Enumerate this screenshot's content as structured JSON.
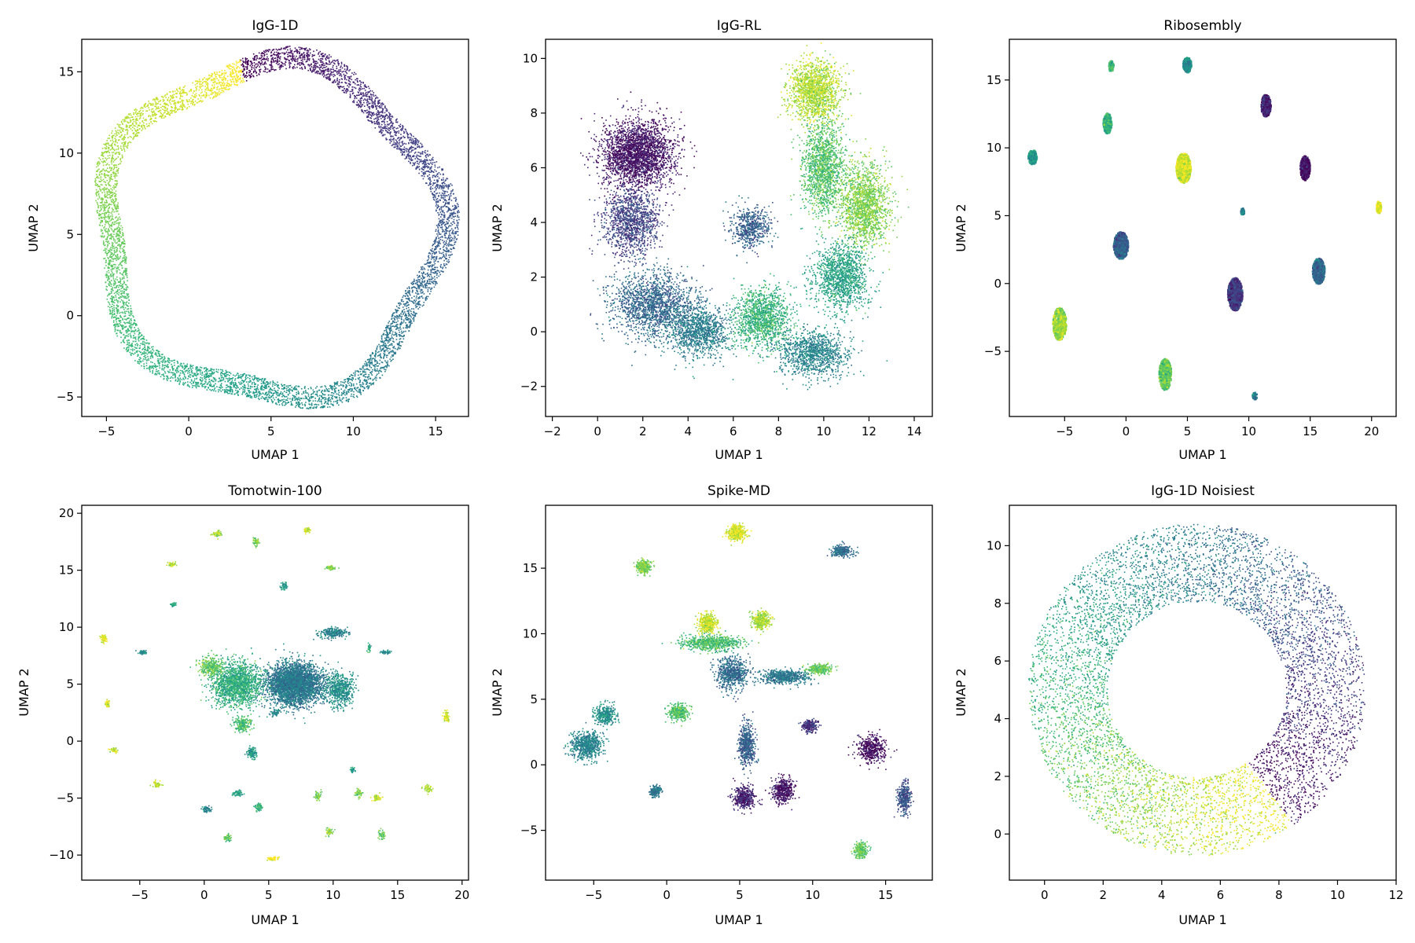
{
  "chart_data": [
    {
      "type": "scatter",
      "title": "IgG-1D",
      "xlabel": "UMAP 1",
      "ylabel": "UMAP 2",
      "xlim": [
        -6.5,
        17
      ],
      "ylim": [
        -6.2,
        17
      ],
      "xticks": [
        -5,
        0,
        5,
        10,
        15
      ],
      "yticks": [
        -5,
        0,
        5,
        10,
        15
      ],
      "xtick_labels": [
        "−5",
        "0",
        "5",
        "10",
        "15"
      ],
      "ytick_labels": [
        "−5",
        "0",
        "5",
        "10",
        "15"
      ],
      "grid": false,
      "colormap": "viridis",
      "structure": "ring",
      "center": [
        5.0,
        5.2
      ],
      "radius": 10.2,
      "thickness": 0.7,
      "color_start_angle_deg": 100
    },
    {
      "type": "scatter",
      "title": "IgG-RL",
      "xlabel": "UMAP 1",
      "ylabel": "UMAP 2",
      "xlim": [
        -2.3,
        14.8
      ],
      "ylim": [
        -3.1,
        10.7
      ],
      "xticks": [
        -2,
        0,
        2,
        4,
        6,
        8,
        10,
        12,
        14
      ],
      "yticks": [
        -2,
        0,
        2,
        4,
        6,
        8,
        10
      ],
      "xtick_labels": [
        "−2",
        "0",
        "2",
        "4",
        "6",
        "8",
        "10",
        "12",
        "14"
      ],
      "ytick_labels": [
        "−2",
        "0",
        "2",
        "4",
        "6",
        "8",
        "10"
      ],
      "grid": false,
      "colormap": "viridis",
      "structure": "blobs",
      "clusters": [
        {
          "x": 1.8,
          "y": 6.5,
          "sx": 1.3,
          "sy": 1.0,
          "c": 0.05,
          "n": 2600
        },
        {
          "x": 1.5,
          "y": 4.0,
          "sx": 1.0,
          "sy": 1.0,
          "c": 0.2,
          "n": 1200
        },
        {
          "x": 2.5,
          "y": 1.0,
          "sx": 1.5,
          "sy": 1.0,
          "c": 0.33,
          "n": 1700
        },
        {
          "x": 4.5,
          "y": 0.0,
          "sx": 1.2,
          "sy": 0.8,
          "c": 0.42,
          "n": 1100
        },
        {
          "x": 6.8,
          "y": 3.8,
          "sx": 0.7,
          "sy": 0.6,
          "c": 0.3,
          "n": 600
        },
        {
          "x": 7.3,
          "y": 0.5,
          "sx": 1.0,
          "sy": 0.9,
          "c": 0.65,
          "n": 1300
        },
        {
          "x": 9.5,
          "y": -0.8,
          "sx": 1.3,
          "sy": 0.7,
          "c": 0.45,
          "n": 1100
        },
        {
          "x": 9.6,
          "y": 8.8,
          "sx": 0.9,
          "sy": 0.9,
          "c": 0.88,
          "n": 1500
        },
        {
          "x": 10.0,
          "y": 6.0,
          "sx": 0.8,
          "sy": 1.4,
          "c": 0.72,
          "n": 1500
        },
        {
          "x": 11.8,
          "y": 4.6,
          "sx": 0.9,
          "sy": 1.2,
          "c": 0.8,
          "n": 1600
        },
        {
          "x": 10.8,
          "y": 2.0,
          "sx": 1.0,
          "sy": 1.0,
          "c": 0.58,
          "n": 1300
        }
      ]
    },
    {
      "type": "scatter",
      "title": "Ribosembly",
      "xlabel": "UMAP 1",
      "ylabel": "UMAP 2",
      "xlim": [
        -9.5,
        22
      ],
      "ylim": [
        -9.8,
        18
      ],
      "xticks": [
        -5,
        0,
        5,
        10,
        15,
        20
      ],
      "yticks": [
        -5,
        0,
        5,
        10,
        15
      ],
      "xtick_labels": [
        "−5",
        "0",
        "5",
        "10",
        "15",
        "20"
      ],
      "ytick_labels": [
        "−5",
        "0",
        "5",
        "10",
        "15"
      ],
      "grid": false,
      "colormap": "viridis",
      "structure": "solid-blobs",
      "clusters": [
        {
          "x": -1.2,
          "y": 16.0,
          "sx": 0.2,
          "sy": 0.4,
          "c": 0.68,
          "n": 120
        },
        {
          "x": 5.0,
          "y": 16.1,
          "sx": 0.35,
          "sy": 0.55,
          "c": 0.5,
          "n": 250
        },
        {
          "x": 11.4,
          "y": 13.1,
          "sx": 0.4,
          "sy": 0.8,
          "c": 0.1,
          "n": 400
        },
        {
          "x": -1.5,
          "y": 11.8,
          "sx": 0.35,
          "sy": 0.75,
          "c": 0.65,
          "n": 300
        },
        {
          "x": -7.6,
          "y": 9.3,
          "sx": 0.35,
          "sy": 0.55,
          "c": 0.55,
          "n": 250
        },
        {
          "x": 4.7,
          "y": 8.5,
          "sx": 0.6,
          "sy": 1.1,
          "c": 0.92,
          "n": 700
        },
        {
          "x": 14.6,
          "y": 8.5,
          "sx": 0.4,
          "sy": 0.9,
          "c": 0.05,
          "n": 400
        },
        {
          "x": 9.5,
          "y": 5.3,
          "sx": 0.15,
          "sy": 0.25,
          "c": 0.45,
          "n": 60
        },
        {
          "x": 20.6,
          "y": 5.6,
          "sx": 0.2,
          "sy": 0.45,
          "c": 0.97,
          "n": 120
        },
        {
          "x": -0.4,
          "y": 2.8,
          "sx": 0.6,
          "sy": 1.0,
          "c": 0.3,
          "n": 700
        },
        {
          "x": 15.7,
          "y": 0.9,
          "sx": 0.5,
          "sy": 0.95,
          "c": 0.35,
          "n": 500
        },
        {
          "x": 8.9,
          "y": -0.8,
          "sx": 0.6,
          "sy": 1.2,
          "c": 0.18,
          "n": 700
        },
        {
          "x": -5.4,
          "y": -3.0,
          "sx": 0.55,
          "sy": 1.2,
          "c": 0.85,
          "n": 650
        },
        {
          "x": 3.2,
          "y": -6.7,
          "sx": 0.5,
          "sy": 1.15,
          "c": 0.75,
          "n": 550
        },
        {
          "x": 10.5,
          "y": -8.3,
          "sx": 0.2,
          "sy": 0.25,
          "c": 0.4,
          "n": 60
        }
      ]
    },
    {
      "type": "scatter",
      "title": "Tomotwin-100",
      "xlabel": "UMAP 1",
      "ylabel": "UMAP 2",
      "xlim": [
        -9.5,
        20.5
      ],
      "ylim": [
        -12.2,
        20.7
      ],
      "xticks": [
        -5,
        0,
        5,
        10,
        15,
        20
      ],
      "yticks": [
        -10,
        -5,
        0,
        5,
        10,
        15,
        20
      ],
      "xtick_labels": [
        "−5",
        "0",
        "5",
        "10",
        "15",
        "20"
      ],
      "ytick_labels": [
        "−10",
        "−5",
        "0",
        "5",
        "10",
        "15",
        "20"
      ],
      "grid": false,
      "colormap": "viridis",
      "structure": "blobs",
      "clusters": [
        {
          "x": 7.0,
          "y": 5.0,
          "sx": 1.8,
          "sy": 1.5,
          "c": 0.4,
          "n": 3500
        },
        {
          "x": 2.5,
          "y": 5.0,
          "sx": 1.6,
          "sy": 1.6,
          "c": 0.62,
          "n": 1600
        },
        {
          "x": 10.5,
          "y": 4.5,
          "sx": 0.9,
          "sy": 1.2,
          "c": 0.5,
          "n": 600
        },
        {
          "x": 10.0,
          "y": 9.5,
          "sx": 0.9,
          "sy": 0.4,
          "c": 0.45,
          "n": 250
        },
        {
          "x": 3.0,
          "y": 1.5,
          "sx": 0.6,
          "sy": 0.5,
          "c": 0.7,
          "n": 200
        },
        {
          "x": 3.7,
          "y": -1.0,
          "sx": 0.3,
          "sy": 0.4,
          "c": 0.55,
          "n": 120
        },
        {
          "x": 0.5,
          "y": 6.5,
          "sx": 0.8,
          "sy": 0.7,
          "c": 0.75,
          "n": 300
        },
        {
          "x": 1.0,
          "y": 18.2,
          "sx": 0.3,
          "sy": 0.2,
          "c": 0.85,
          "n": 60
        },
        {
          "x": 4.0,
          "y": 17.5,
          "sx": 0.2,
          "sy": 0.3,
          "c": 0.8,
          "n": 60
        },
        {
          "x": 8.0,
          "y": 18.5,
          "sx": 0.2,
          "sy": 0.2,
          "c": 0.92,
          "n": 50
        },
        {
          "x": -2.5,
          "y": 15.5,
          "sx": 0.3,
          "sy": 0.15,
          "c": 0.87,
          "n": 50
        },
        {
          "x": 9.8,
          "y": 15.2,
          "sx": 0.3,
          "sy": 0.15,
          "c": 0.8,
          "n": 50
        },
        {
          "x": 6.2,
          "y": 13.6,
          "sx": 0.2,
          "sy": 0.3,
          "c": 0.55,
          "n": 50
        },
        {
          "x": -2.4,
          "y": 12.0,
          "sx": 0.2,
          "sy": 0.15,
          "c": 0.6,
          "n": 40
        },
        {
          "x": -7.8,
          "y": 9.0,
          "sx": 0.2,
          "sy": 0.3,
          "c": 0.95,
          "n": 60
        },
        {
          "x": -4.8,
          "y": 7.8,
          "sx": 0.25,
          "sy": 0.15,
          "c": 0.5,
          "n": 50
        },
        {
          "x": -7.5,
          "y": 3.3,
          "sx": 0.15,
          "sy": 0.3,
          "c": 0.95,
          "n": 50
        },
        {
          "x": -7.0,
          "y": -0.8,
          "sx": 0.3,
          "sy": 0.15,
          "c": 0.9,
          "n": 50
        },
        {
          "x": -3.7,
          "y": -3.8,
          "sx": 0.25,
          "sy": 0.25,
          "c": 0.88,
          "n": 50
        },
        {
          "x": 0.2,
          "y": -6.0,
          "sx": 0.3,
          "sy": 0.2,
          "c": 0.45,
          "n": 60
        },
        {
          "x": 2.6,
          "y": -4.6,
          "sx": 0.4,
          "sy": 0.2,
          "c": 0.58,
          "n": 60
        },
        {
          "x": 4.2,
          "y": -5.8,
          "sx": 0.25,
          "sy": 0.3,
          "c": 0.65,
          "n": 60
        },
        {
          "x": 8.8,
          "y": -4.8,
          "sx": 0.25,
          "sy": 0.3,
          "c": 0.78,
          "n": 50
        },
        {
          "x": 12.0,
          "y": -4.6,
          "sx": 0.25,
          "sy": 0.35,
          "c": 0.8,
          "n": 50
        },
        {
          "x": 13.4,
          "y": -5.0,
          "sx": 0.3,
          "sy": 0.25,
          "c": 0.92,
          "n": 50
        },
        {
          "x": 17.3,
          "y": -4.2,
          "sx": 0.3,
          "sy": 0.25,
          "c": 0.88,
          "n": 50
        },
        {
          "x": 18.8,
          "y": 2.2,
          "sx": 0.2,
          "sy": 0.4,
          "c": 0.95,
          "n": 60
        },
        {
          "x": 1.8,
          "y": -8.5,
          "sx": 0.25,
          "sy": 0.25,
          "c": 0.72,
          "n": 50
        },
        {
          "x": 9.7,
          "y": -8.0,
          "sx": 0.25,
          "sy": 0.3,
          "c": 0.82,
          "n": 50
        },
        {
          "x": 13.8,
          "y": -8.2,
          "sx": 0.2,
          "sy": 0.35,
          "c": 0.75,
          "n": 50
        },
        {
          "x": 5.3,
          "y": -10.3,
          "sx": 0.35,
          "sy": 0.15,
          "c": 0.97,
          "n": 50
        },
        {
          "x": 14.0,
          "y": 7.8,
          "sx": 0.35,
          "sy": 0.15,
          "c": 0.5,
          "n": 40
        },
        {
          "x": 12.8,
          "y": 8.2,
          "sx": 0.1,
          "sy": 0.3,
          "c": 0.6,
          "n": 30
        },
        {
          "x": 11.5,
          "y": -2.5,
          "sx": 0.15,
          "sy": 0.2,
          "c": 0.55,
          "n": 30
        },
        {
          "x": 5.5,
          "y": 2.5,
          "sx": 0.3,
          "sy": 0.3,
          "c": 0.48,
          "n": 60
        }
      ]
    },
    {
      "type": "scatter",
      "title": "Spike-MD",
      "xlabel": "UMAP 1",
      "ylabel": "UMAP 2",
      "xlim": [
        -8.3,
        18.2
      ],
      "ylim": [
        -8.8,
        19.8
      ],
      "xticks": [
        -5,
        0,
        5,
        10,
        15
      ],
      "yticks": [
        -5,
        0,
        5,
        10,
        15
      ],
      "xtick_labels": [
        "−5",
        "0",
        "5",
        "10",
        "15"
      ],
      "ytick_labels": [
        "−5",
        "0",
        "5",
        "10",
        "15"
      ],
      "grid": false,
      "colormap": "viridis",
      "structure": "blobs",
      "clusters": [
        {
          "x": 4.8,
          "y": 17.7,
          "sx": 0.5,
          "sy": 0.45,
          "c": 0.95,
          "n": 450
        },
        {
          "x": -1.6,
          "y": 15.1,
          "sx": 0.4,
          "sy": 0.4,
          "c": 0.8,
          "n": 350
        },
        {
          "x": 12.0,
          "y": 16.3,
          "sx": 0.6,
          "sy": 0.35,
          "c": 0.35,
          "n": 300
        },
        {
          "x": 2.8,
          "y": 10.8,
          "sx": 0.5,
          "sy": 0.6,
          "c": 0.92,
          "n": 450
        },
        {
          "x": 6.5,
          "y": 11.0,
          "sx": 0.5,
          "sy": 0.5,
          "c": 0.87,
          "n": 400
        },
        {
          "x": 3.0,
          "y": 9.3,
          "sx": 1.7,
          "sy": 0.5,
          "c": 0.7,
          "n": 700
        },
        {
          "x": 4.5,
          "y": 7.0,
          "sx": 0.9,
          "sy": 1.0,
          "c": 0.35,
          "n": 700
        },
        {
          "x": 8.0,
          "y": 6.7,
          "sx": 1.4,
          "sy": 0.45,
          "c": 0.4,
          "n": 600
        },
        {
          "x": 10.5,
          "y": 7.3,
          "sx": 0.7,
          "sy": 0.3,
          "c": 0.75,
          "n": 300
        },
        {
          "x": 0.8,
          "y": 4.0,
          "sx": 0.6,
          "sy": 0.5,
          "c": 0.72,
          "n": 400
        },
        {
          "x": -5.5,
          "y": 1.5,
          "sx": 0.9,
          "sy": 0.9,
          "c": 0.45,
          "n": 700
        },
        {
          "x": -4.2,
          "y": 3.8,
          "sx": 0.6,
          "sy": 0.6,
          "c": 0.5,
          "n": 350
        },
        {
          "x": 5.5,
          "y": 1.5,
          "sx": 0.5,
          "sy": 1.4,
          "c": 0.3,
          "n": 550
        },
        {
          "x": 5.3,
          "y": -2.5,
          "sx": 0.6,
          "sy": 0.7,
          "c": 0.1,
          "n": 450
        },
        {
          "x": 8.0,
          "y": -2.0,
          "sx": 0.6,
          "sy": 0.8,
          "c": 0.05,
          "n": 450
        },
        {
          "x": -0.8,
          "y": -2.0,
          "sx": 0.3,
          "sy": 0.35,
          "c": 0.4,
          "n": 200
        },
        {
          "x": 9.8,
          "y": 3.0,
          "sx": 0.4,
          "sy": 0.4,
          "c": 0.15,
          "n": 250
        },
        {
          "x": 14.0,
          "y": 1.2,
          "sx": 0.8,
          "sy": 0.8,
          "c": 0.03,
          "n": 450
        },
        {
          "x": 16.3,
          "y": -2.5,
          "sx": 0.35,
          "sy": 1.0,
          "c": 0.25,
          "n": 350
        },
        {
          "x": 13.3,
          "y": -6.5,
          "sx": 0.35,
          "sy": 0.5,
          "c": 0.75,
          "n": 250
        }
      ]
    },
    {
      "type": "scatter",
      "title": "IgG-1D Noisiest",
      "xlabel": "UMAP 1",
      "ylabel": "UMAP 2",
      "xlim": [
        -1.2,
        12.0
      ],
      "ylim": [
        -1.6,
        11.4
      ],
      "xticks": [
        0,
        2,
        4,
        6,
        8,
        10,
        12
      ],
      "yticks": [
        0,
        2,
        4,
        6,
        8,
        10
      ],
      "xtick_labels": [
        "0",
        "2",
        "4",
        "6",
        "8",
        "10",
        "12"
      ],
      "ytick_labels": [
        "0",
        "2",
        "4",
        "6",
        "8",
        "10"
      ],
      "grid": false,
      "colormap": "viridis",
      "structure": "ring",
      "center": [
        5.2,
        5.0
      ],
      "radius": 4.4,
      "thickness": 1.35,
      "color_start_angle_deg": -55
    }
  ]
}
